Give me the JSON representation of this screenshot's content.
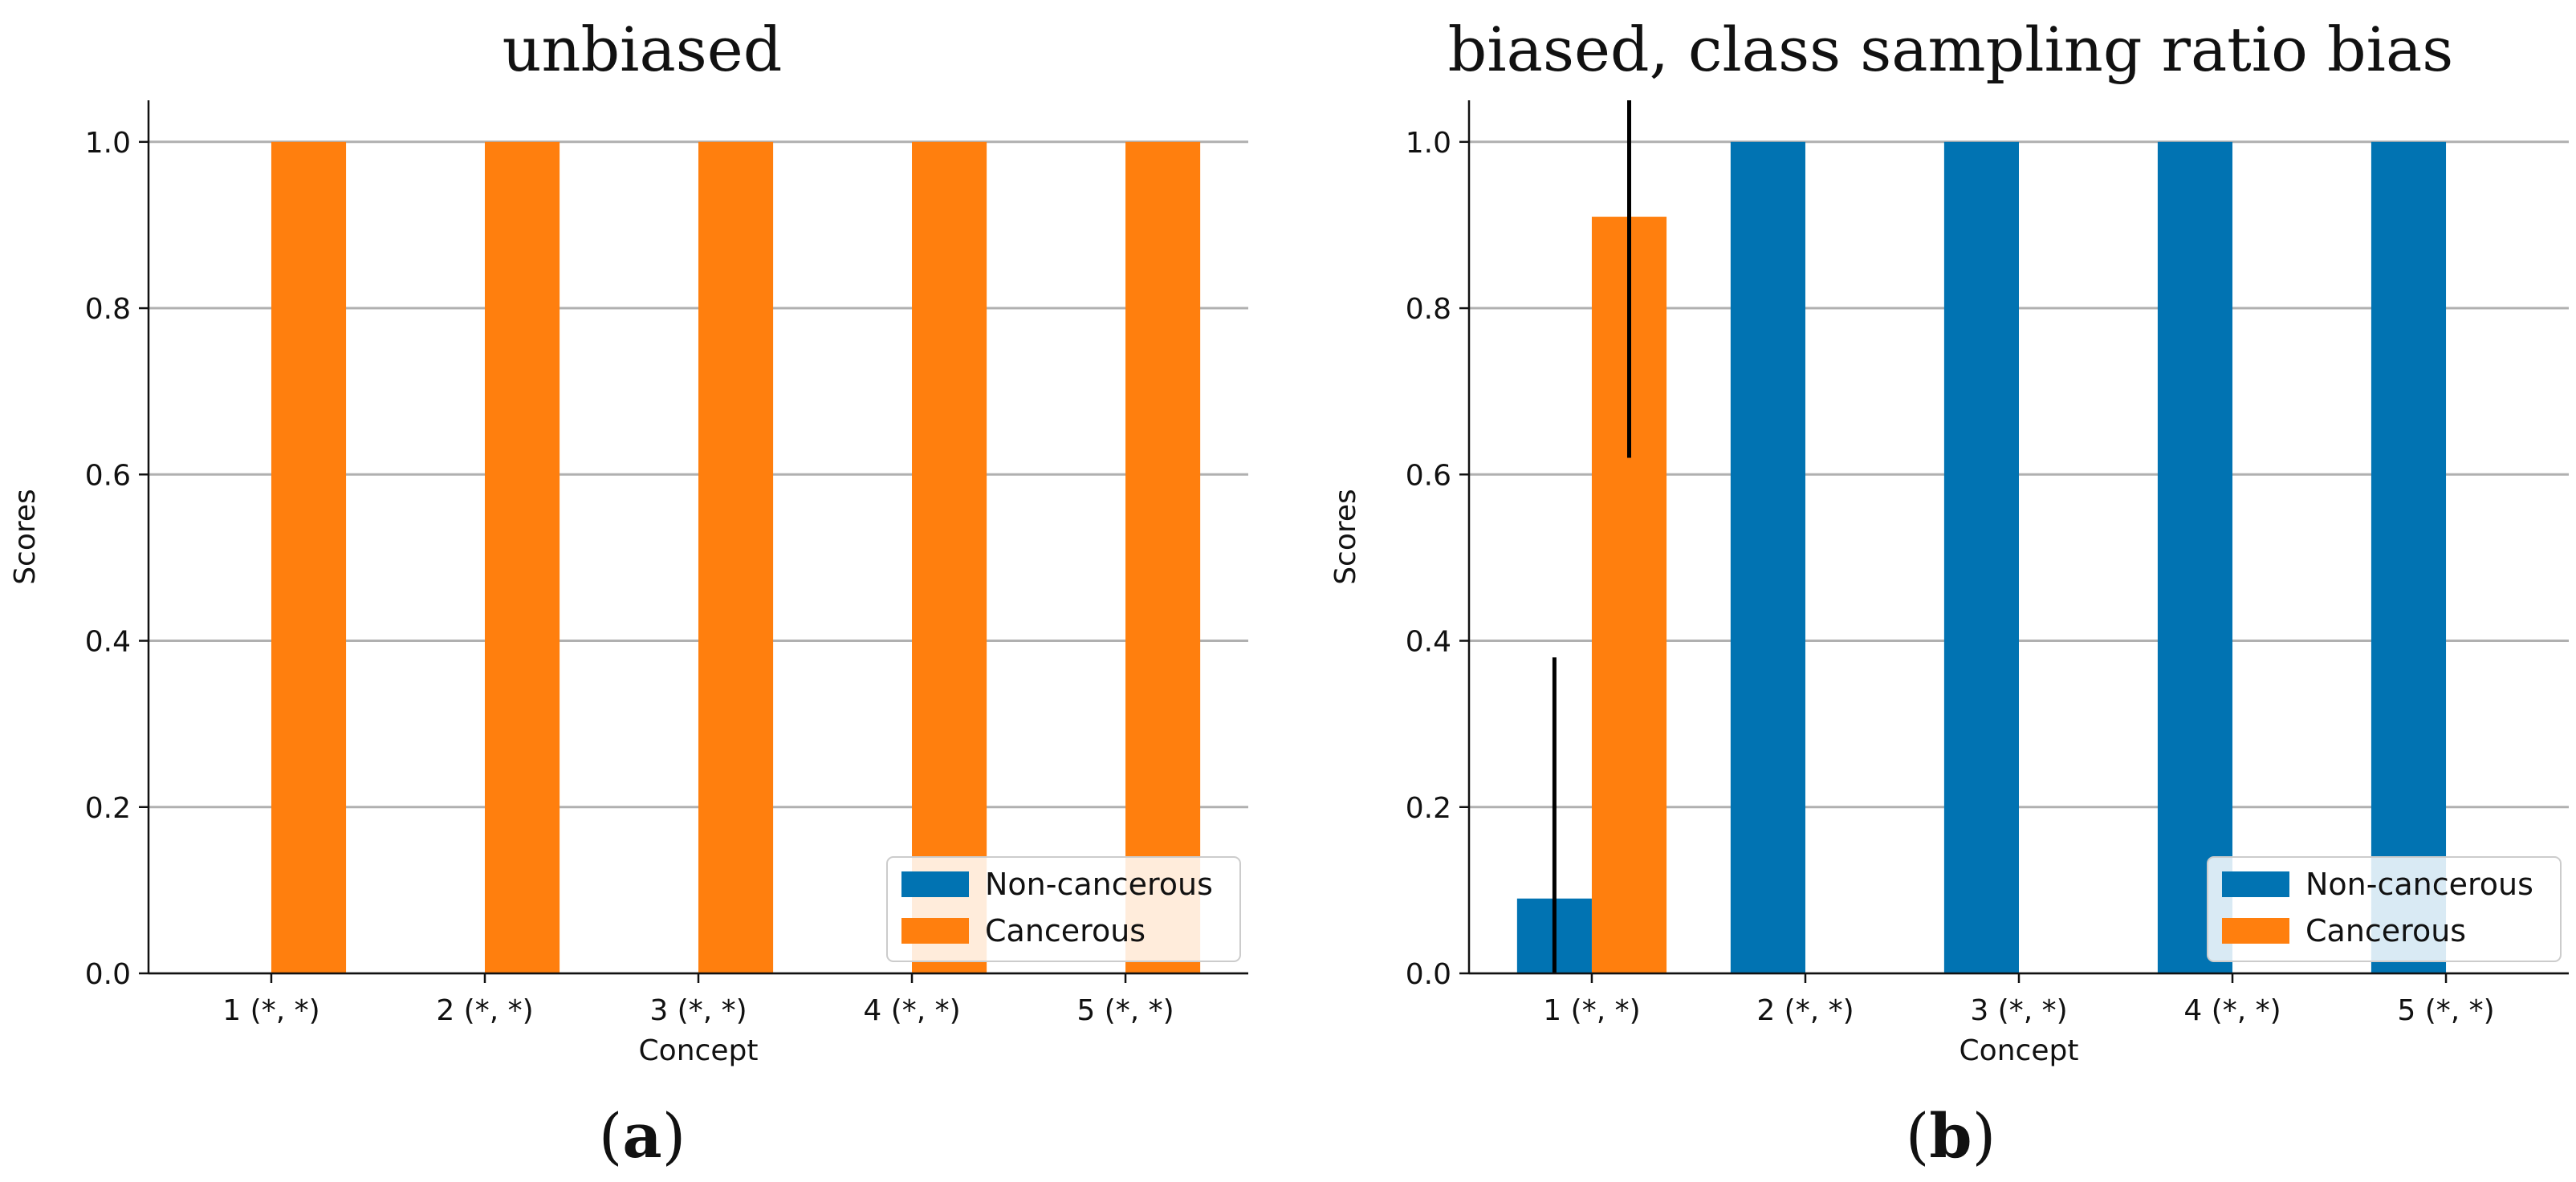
{
  "colors": {
    "non_cancerous": "#0173b2",
    "cancerous": "#ff7f0e",
    "grid": "#b0b0b0",
    "axis": "#111111",
    "errorbar": "#000000"
  },
  "chart_data": [
    {
      "type": "bar",
      "title": "unbiased",
      "panel_label": {
        "open": "(",
        "letter": "a",
        "close": ")"
      },
      "xlabel": "Concept",
      "ylabel": "Scores",
      "ylim": [
        0,
        1.05
      ],
      "yticks": [
        0.0,
        0.2,
        0.4,
        0.6,
        0.8,
        1.0
      ],
      "ytick_labels": [
        "0.0",
        "0.2",
        "0.4",
        "0.6",
        "0.8",
        "1.0"
      ],
      "categories": [
        "1 (*, *)",
        "2 (*, *)",
        "3 (*, *)",
        "4 (*, *)",
        "5 (*, *)"
      ],
      "grid": "y",
      "legend_position": "lower right",
      "series": [
        {
          "name": "Non-cancerous",
          "values": [
            0,
            0,
            0,
            0,
            0
          ],
          "errors": [
            0,
            0,
            0,
            0,
            0
          ]
        },
        {
          "name": "Cancerous",
          "values": [
            1.0,
            1.0,
            1.0,
            1.0,
            1.0
          ],
          "errors": [
            0,
            0,
            0,
            0,
            0
          ]
        }
      ]
    },
    {
      "type": "bar",
      "title": "biased, class sampling ratio bias",
      "panel_label": {
        "open": "(",
        "letter": "b",
        "close": ")"
      },
      "xlabel": "Concept",
      "ylabel": "Scores",
      "ylim": [
        0,
        1.05
      ],
      "yticks": [
        0.0,
        0.2,
        0.4,
        0.6,
        0.8,
        1.0
      ],
      "ytick_labels": [
        "0.0",
        "0.2",
        "0.4",
        "0.6",
        "0.8",
        "1.0"
      ],
      "categories": [
        "1 (*, *)",
        "2 (*, *)",
        "3 (*, *)",
        "4 (*, *)",
        "5 (*, *)"
      ],
      "grid": "y",
      "legend_position": "lower right",
      "series": [
        {
          "name": "Non-cancerous",
          "values": [
            0.09,
            1.0,
            1.0,
            1.0,
            1.0
          ],
          "errors": [
            0.29,
            0,
            0,
            0,
            0
          ]
        },
        {
          "name": "Cancerous",
          "values": [
            0.91,
            0,
            0,
            0,
            0
          ],
          "errors": [
            0.29,
            0,
            0,
            0,
            0
          ]
        }
      ]
    }
  ]
}
